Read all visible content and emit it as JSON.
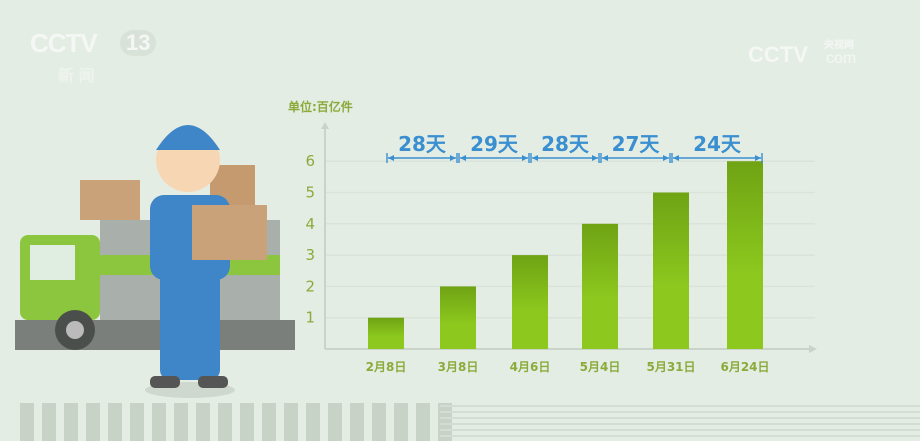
{
  "logos": {
    "left_main": "CCTV",
    "left_channel": "13",
    "left_sub": "新 闻",
    "right_main": "CCTV",
    "right_sub": "央视网",
    "right_suffix": "com"
  },
  "chart_data": {
    "type": "bar",
    "unit_label": "单位:百亿件",
    "categories": [
      "2月8日",
      "3月8日",
      "4月6日",
      "5月4日",
      "5月31日",
      "6月24日"
    ],
    "values": [
      1,
      2,
      3,
      4,
      5,
      6
    ],
    "yticks": [
      1,
      2,
      3,
      4,
      5,
      6
    ],
    "ylim": [
      0,
      6.6
    ],
    "grid": true,
    "intervals": [
      "28天",
      "29天",
      "28天",
      "27天",
      "24天"
    ],
    "colors": {
      "bar": "#8cc81e",
      "bar_dark": "#6fa314",
      "interval": "#3a8fd0",
      "tick": "#8aab3a",
      "axis": "#c9d3c9"
    }
  }
}
